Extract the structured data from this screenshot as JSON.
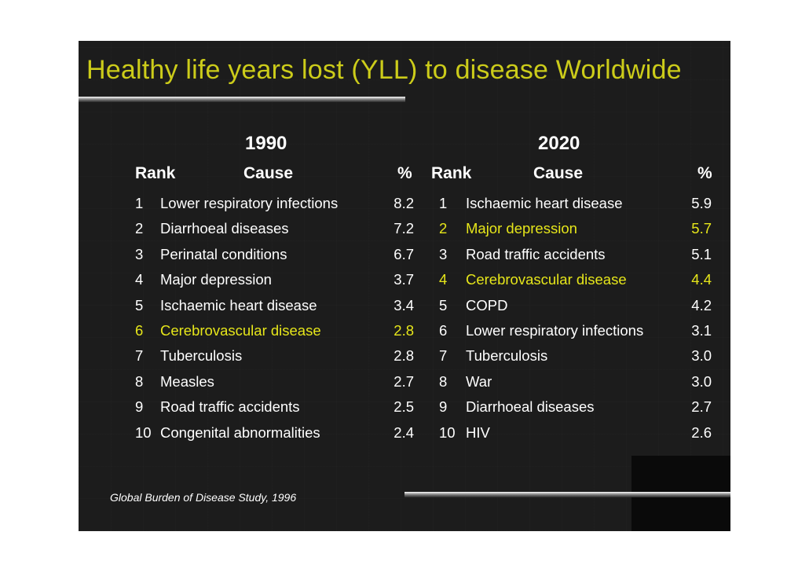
{
  "title": "Healthy life years lost (YLL) to disease Worldwide",
  "headers": {
    "rank": "Rank",
    "cause": "Cause",
    "pct": "%"
  },
  "left": {
    "year": "1990",
    "rows": [
      {
        "rank": "1",
        "cause": "Lower respiratory infections",
        "pct": "8.2",
        "highlight": false
      },
      {
        "rank": "2",
        "cause": "Diarrhoeal diseases",
        "pct": "7.2",
        "highlight": false
      },
      {
        "rank": "3",
        "cause": "Perinatal conditions",
        "pct": "6.7",
        "highlight": false
      },
      {
        "rank": "4",
        "cause": "Major depression",
        "pct": "3.7",
        "highlight": false
      },
      {
        "rank": "5",
        "cause": "Ischaemic heart disease",
        "pct": "3.4",
        "highlight": false
      },
      {
        "rank": "6",
        "cause": "Cerebrovascular disease",
        "pct": "2.8",
        "highlight": true
      },
      {
        "rank": "7",
        "cause": "Tuberculosis",
        "pct": "2.8",
        "highlight": false
      },
      {
        "rank": "8",
        "cause": "Measles",
        "pct": "2.7",
        "highlight": false
      },
      {
        "rank": "9",
        "cause": "Road traffic accidents",
        "pct": "2.5",
        "highlight": false
      },
      {
        "rank": "10",
        "cause": "Congenital abnormalities",
        "pct": "2.4",
        "highlight": false
      }
    ]
  },
  "right": {
    "year": "2020",
    "rows": [
      {
        "rank": "1",
        "cause": "Ischaemic heart disease",
        "pct": "5.9",
        "highlight": false
      },
      {
        "rank": "2",
        "cause": "Major depression",
        "pct": "5.7",
        "highlight": true
      },
      {
        "rank": "3",
        "cause": "Road traffic accidents",
        "pct": "5.1",
        "highlight": false
      },
      {
        "rank": "4",
        "cause": "Cerebrovascular disease",
        "pct": "4.4",
        "highlight": true
      },
      {
        "rank": "5",
        "cause": "COPD",
        "pct": "4.2",
        "highlight": false
      },
      {
        "rank": "6",
        "cause": "Lower respiratory infections",
        "pct": "3.1",
        "highlight": false
      },
      {
        "rank": "7",
        "cause": "Tuberculosis",
        "pct": "3.0",
        "highlight": false
      },
      {
        "rank": "8",
        "cause": "War",
        "pct": "3.0",
        "highlight": false
      },
      {
        "rank": "9",
        "cause": "Diarrhoeal diseases",
        "pct": "2.7",
        "highlight": false
      },
      {
        "rank": "10",
        "cause": "HIV",
        "pct": "2.6",
        "highlight": false
      }
    ]
  },
  "source": "Global Burden of Disease Study, 1996",
  "colors": {
    "background": "#1c1c1c",
    "title": "#cccc1a",
    "highlight": "#e6e61a",
    "text": "#ffffff"
  }
}
